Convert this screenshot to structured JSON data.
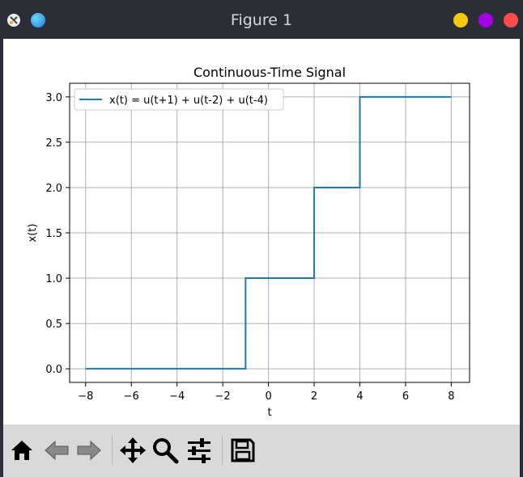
{
  "window": {
    "title": "Figure 1"
  },
  "colors": {
    "series": "#1f77b4",
    "grid": "#b0b0b0",
    "btn_yellow": "#f6c90e",
    "btn_purple": "#a400e6",
    "btn_red": "#ff4d4d"
  },
  "toolbar": {
    "icons": [
      "home-icon",
      "back-icon",
      "forward-icon",
      "pan-icon",
      "zoom-icon",
      "configure-subplots-icon",
      "save-icon"
    ]
  },
  "chart_data": {
    "type": "line",
    "title": "Continuous-Time Signal",
    "xlabel": "t",
    "ylabel": "x(t)",
    "xlim": [
      -8.7,
      8.8
    ],
    "ylim": [
      -0.15,
      3.15
    ],
    "x_ticks": [
      -8,
      -6,
      -4,
      -2,
      0,
      2,
      4,
      6,
      8
    ],
    "y_ticks": [
      0.0,
      0.5,
      1.0,
      1.5,
      2.0,
      2.5,
      3.0
    ],
    "x_tick_labels": [
      "−8",
      "−6",
      "−4",
      "−2",
      "0",
      "2",
      "4",
      "6",
      "8"
    ],
    "y_tick_labels": [
      "0.0",
      "0.5",
      "1.0",
      "1.5",
      "2.0",
      "2.5",
      "3.0"
    ],
    "grid": true,
    "legend_position": "top-left",
    "series": [
      {
        "name": "x(t) = u(t+1) + u(t-2) + u(t-4)",
        "x": [
          -8,
          -1,
          -1,
          2,
          2,
          4,
          4,
          8
        ],
        "y": [
          0,
          0,
          1,
          1,
          2,
          2,
          3,
          3
        ]
      }
    ]
  }
}
